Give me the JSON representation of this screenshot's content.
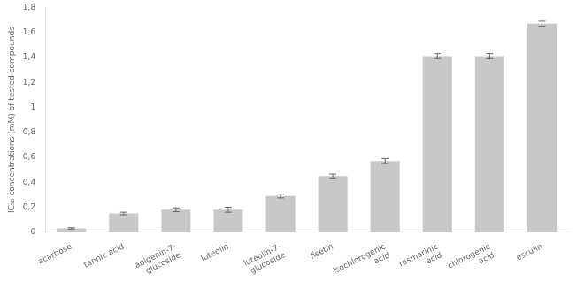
{
  "chart_data": {
    "type": "bar",
    "categories": [
      "acarbose",
      "tannic acid",
      "apigenin-7-\nglucoside",
      "luteolin",
      "luteolin-7-\nglucoside",
      "fisetin",
      "isochlorogenic\nacid",
      "rosmarinic\nacid",
      "chlorogenic\nacid",
      "esculin"
    ],
    "values": [
      0.03,
      0.15,
      0.18,
      0.18,
      0.29,
      0.45,
      0.57,
      1.41,
      1.41,
      1.67
    ],
    "errors": [
      0.005,
      0.01,
      0.015,
      0.02,
      0.015,
      0.015,
      0.02,
      0.02,
      0.02,
      0.02
    ],
    "color": "#c8c8c8",
    "ylabel": "IC₅₀-concentrations (mM) of tested compounds",
    "ylim": [
      0,
      1.8
    ],
    "yticks": [
      0,
      {
        "value": 0.2,
        "label": "0,2"
      },
      {
        "value": 0.4,
        "label": "0,4"
      },
      {
        "value": 0.6,
        "label": "0,6"
      },
      {
        "value": 0.8,
        "label": "0,8"
      },
      1,
      {
        "value": 1.2,
        "label": "1,2"
      },
      {
        "value": 1.4,
        "label": "1,4"
      },
      {
        "value": 1.6,
        "label": "1,6"
      },
      {
        "value": 1.8,
        "label": "1,8"
      }
    ],
    "grid": false
  }
}
